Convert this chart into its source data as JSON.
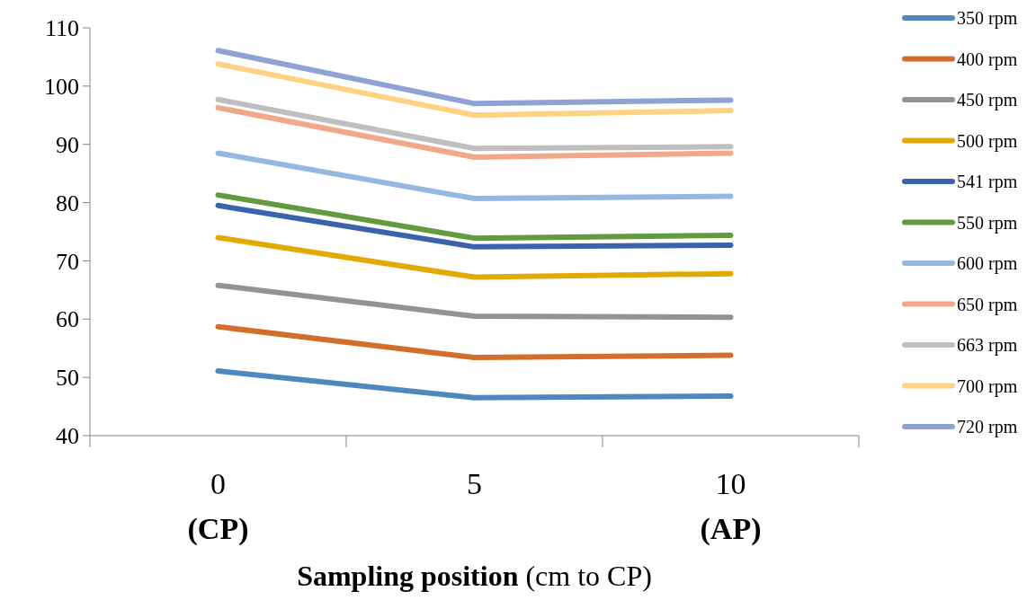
{
  "chart_data": {
    "type": "line",
    "categories": [
      "0\n(CP)",
      "5",
      "10\n(AP)"
    ],
    "xlabel": "Sampling position (cm to CP)",
    "ylim": [
      40,
      110
    ],
    "yticks": [
      40,
      50,
      60,
      70,
      80,
      90,
      100,
      110
    ],
    "grid": false,
    "legend": "right",
    "marker": "none",
    "line_style": "solid",
    "series": [
      {
        "name": "350 rpm",
        "color": "#4f88bf",
        "values": [
          51.1,
          46.5,
          46.8
        ]
      },
      {
        "name": "400 rpm",
        "color": "#d46c2a",
        "values": [
          58.7,
          53.4,
          53.8
        ]
      },
      {
        "name": "450 rpm",
        "color": "#939393",
        "values": [
          65.8,
          60.5,
          60.3
        ]
      },
      {
        "name": "500 rpm",
        "color": "#e2aa00",
        "values": [
          74.0,
          67.2,
          67.8
        ]
      },
      {
        "name": "541 rpm",
        "color": "#3a63ad",
        "values": [
          79.5,
          72.4,
          72.7
        ]
      },
      {
        "name": "550 rpm",
        "color": "#629b3e",
        "values": [
          81.3,
          73.9,
          74.4
        ]
      },
      {
        "name": "600 rpm",
        "color": "#96b8e0",
        "values": [
          88.5,
          80.7,
          81.1
        ]
      },
      {
        "name": "650 rpm",
        "color": "#f0a78a",
        "values": [
          96.3,
          87.8,
          88.5
        ]
      },
      {
        "name": "663 rpm",
        "color": "#bfbfbf",
        "values": [
          97.7,
          89.3,
          89.6
        ]
      },
      {
        "name": "700 rpm",
        "color": "#ffd182",
        "values": [
          103.8,
          95.0,
          95.8
        ]
      },
      {
        "name": "720 rpm",
        "color": "#8ea2d4",
        "values": [
          106.1,
          97.0,
          97.6
        ]
      }
    ]
  }
}
